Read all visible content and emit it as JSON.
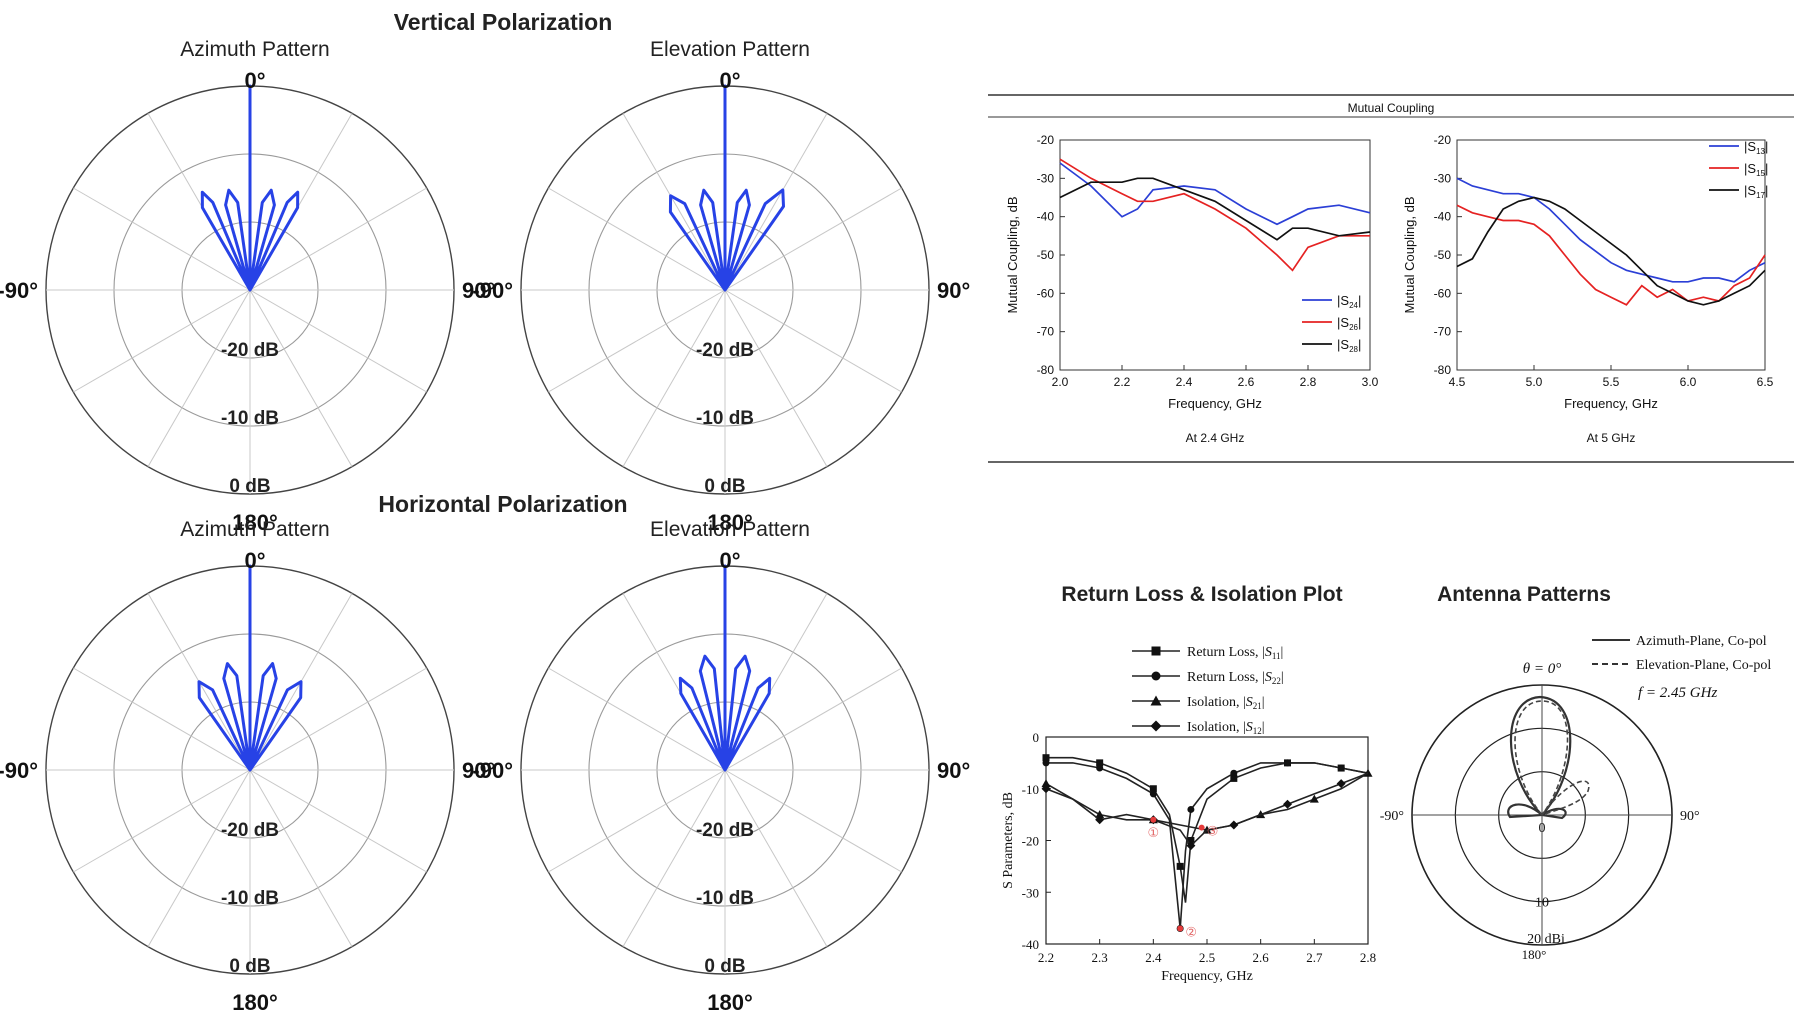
{
  "chart_data": [
    {
      "type": "polar",
      "group_title": "Vertical Polarization",
      "title": "Azimuth Pattern",
      "angle_labels": {
        "top": "0°",
        "bottom": "180°",
        "left": "-90°",
        "right": "90°"
      },
      "ring_labels": [
        "-20 dB",
        "-10 dB",
        "0 dB"
      ],
      "rlim_db": [
        -30,
        0
      ],
      "color": "#2742e6",
      "series": [
        {
          "name": "pattern",
          "angle_deg": [
            -36,
            -30,
            -26,
            -23,
            -20,
            -16,
            -12,
            -8,
            -4,
            0,
            4,
            8,
            12,
            16,
            20,
            23,
            26,
            30,
            36
          ],
          "level_db": [
            -30,
            -16,
            -14,
            -16,
            -30,
            -17,
            -15,
            -17,
            -30,
            0,
            -30,
            -17,
            -15,
            -17,
            -30,
            -16,
            -14,
            -16,
            -30
          ]
        }
      ]
    },
    {
      "type": "polar",
      "title": "Elevation Pattern",
      "angle_labels": {
        "top": "0°",
        "bottom": "180°",
        "left": "-90°",
        "right": "90°"
      },
      "ring_labels": [
        "-20 dB",
        "-10 dB",
        "0 dB"
      ],
      "rlim_db": [
        -30,
        0
      ],
      "color": "#2742e6",
      "series": [
        {
          "name": "pattern",
          "angle_deg": [
            -40,
            -35,
            -30,
            -25,
            -20,
            -16,
            -12,
            -8,
            -4,
            0,
            4,
            8,
            12,
            16,
            20,
            25,
            30,
            35,
            40
          ],
          "level_db": [
            -30,
            -16,
            -14,
            -16,
            -30,
            -17,
            -15,
            -17,
            -30,
            0,
            -30,
            -17,
            -15,
            -17,
            -30,
            -16,
            -13,
            -15,
            -30
          ]
        }
      ]
    },
    {
      "type": "polar",
      "group_title": "Horizontal Polarization",
      "title": "Azimuth Pattern",
      "angle_labels": {
        "top": "0°",
        "bottom": "180°",
        "left": "-90°",
        "right": "90°"
      },
      "ring_labels": [
        "-20 dB",
        "-10 dB",
        "0 dB"
      ],
      "rlim_db": [
        -30,
        0
      ],
      "color": "#2742e6",
      "series": [
        {
          "name": "pattern",
          "angle_deg": [
            -40,
            -35,
            -30,
            -25,
            -20,
            -16,
            -12,
            -8,
            -4,
            0,
            4,
            8,
            12,
            16,
            20,
            25,
            30,
            35,
            40
          ],
          "level_db": [
            -30,
            -17,
            -15,
            -17,
            -30,
            -16,
            -14,
            -16,
            -30,
            0,
            -30,
            -16,
            -14,
            -16,
            -30,
            -17,
            -15,
            -17,
            -30
          ]
        }
      ]
    },
    {
      "type": "polar",
      "title": "Elevation Pattern",
      "angle_labels": {
        "top": "0°",
        "bottom": "180°",
        "left": "-90°",
        "right": "90°"
      },
      "ring_labels": [
        "-20 dB",
        "-10 dB",
        "0 dB"
      ],
      "rlim_db": [
        -30,
        0
      ],
      "color": "#2742e6",
      "series": [
        {
          "name": "pattern",
          "angle_deg": [
            -34,
            -30,
            -26,
            -22,
            -18,
            -14,
            -10,
            -6,
            -3,
            0,
            3,
            6,
            10,
            14,
            18,
            22,
            26,
            30,
            34
          ],
          "level_db": [
            -30,
            -17,
            -15,
            -17,
            -30,
            -15,
            -13,
            -15,
            -30,
            0,
            -30,
            -15,
            -13,
            -15,
            -30,
            -17,
            -15,
            -17,
            -30
          ]
        }
      ]
    },
    {
      "type": "line",
      "panel_title": "Mutual Coupling",
      "xlabel": "Frequency, GHz",
      "ylabel": "Mutual Coupling, dB",
      "caption": "At 2.4 GHz",
      "xlim": [
        2.0,
        3.0
      ],
      "ylim": [
        -80,
        -20
      ],
      "xticks": [
        "2.0",
        "2.2",
        "2.4",
        "2.6",
        "2.8",
        "3.0"
      ],
      "yticks": [
        "-20",
        "-30",
        "-40",
        "-50",
        "-60",
        "-70",
        "-80"
      ],
      "x": [
        2.0,
        2.1,
        2.2,
        2.25,
        2.3,
        2.4,
        2.5,
        2.6,
        2.7,
        2.75,
        2.8,
        2.9,
        3.0
      ],
      "series": [
        {
          "name": "|S24|",
          "sub": "24",
          "color": "#2b3fd6",
          "values": [
            -26,
            -32,
            -40,
            -38,
            -33,
            -32,
            -33,
            -38,
            -42,
            -40,
            -38,
            -37,
            -39
          ]
        },
        {
          "name": "|S26|",
          "sub": "26",
          "color": "#e52222",
          "values": [
            -25,
            -30,
            -34,
            -36,
            -36,
            -34,
            -38,
            -43,
            -50,
            -54,
            -48,
            -45,
            -45
          ]
        },
        {
          "name": "|S28|",
          "sub": "28",
          "color": "#111111",
          "values": [
            -35,
            -31,
            -31,
            -30,
            -30,
            -33,
            -36,
            -41,
            -46,
            -43,
            -43,
            -45,
            -44
          ]
        }
      ]
    },
    {
      "type": "line",
      "xlabel": "Frequency, GHz",
      "ylabel": "Mutual Coupling, dB",
      "caption": "At 5 GHz",
      "xlim": [
        4.5,
        6.5
      ],
      "ylim": [
        -80,
        -20
      ],
      "xticks": [
        "4.5",
        "5.0",
        "5.5",
        "6.0",
        "6.5"
      ],
      "yticks": [
        "-20",
        "-30",
        "-40",
        "-50",
        "-60",
        "-70",
        "-80"
      ],
      "x": [
        4.5,
        4.6,
        4.7,
        4.8,
        4.9,
        5.0,
        5.1,
        5.2,
        5.3,
        5.4,
        5.5,
        5.6,
        5.7,
        5.8,
        5.9,
        6.0,
        6.1,
        6.2,
        6.3,
        6.4,
        6.5
      ],
      "series": [
        {
          "name": "|S13|",
          "sub": "13",
          "color": "#2b3fd6",
          "values": [
            -30,
            -32,
            -33,
            -34,
            -34,
            -35,
            -38,
            -42,
            -46,
            -49,
            -52,
            -54,
            -55,
            -56,
            -57,
            -57,
            -56,
            -56,
            -57,
            -54,
            -52
          ]
        },
        {
          "name": "|S15|",
          "sub": "15",
          "color": "#e52222",
          "values": [
            -37,
            -39,
            -40,
            -41,
            -41,
            -42,
            -45,
            -50,
            -55,
            -59,
            -61,
            -63,
            -58,
            -61,
            -59,
            -62,
            -61,
            -62,
            -58,
            -56,
            -50
          ]
        },
        {
          "name": "|S17|",
          "sub": "17",
          "color": "#111111",
          "values": [
            -53,
            -51,
            -44,
            -38,
            -36,
            -35,
            -36,
            -38,
            -41,
            -44,
            -47,
            -50,
            -54,
            -58,
            -60,
            -62,
            -63,
            -62,
            -60,
            -58,
            -54
          ]
        }
      ]
    },
    {
      "type": "line",
      "title": "Return Loss & Isolation Plot",
      "xlabel": "Frequency, GHz",
      "ylabel": "S Parameters, dB",
      "xlim": [
        2.2,
        2.8
      ],
      "ylim": [
        -40,
        0
      ],
      "xticks": [
        "2.2",
        "2.3",
        "2.4",
        "2.5",
        "2.6",
        "2.7",
        "2.8"
      ],
      "yticks": [
        "0",
        "-10",
        "-20",
        "-30",
        "-40"
      ],
      "series": [
        {
          "name": "Return Loss, |S11|",
          "legend_prefix": "Return Loss, |",
          "sym": "S",
          "sub": "11",
          "marker": "square",
          "x": [
            2.2,
            2.25,
            2.3,
            2.35,
            2.4,
            2.43,
            2.45,
            2.46,
            2.47,
            2.5,
            2.55,
            2.6,
            2.65,
            2.7,
            2.75,
            2.8
          ],
          "values": [
            -4,
            -4,
            -5,
            -7,
            -10,
            -15,
            -25,
            -32,
            -20,
            -12,
            -8,
            -6,
            -5,
            -5,
            -6,
            -7
          ]
        },
        {
          "name": "Return Loss, |S22|",
          "legend_prefix": "Return Loss, |",
          "sym": "S",
          "sub": "22",
          "marker": "circle",
          "x": [
            2.2,
            2.25,
            2.3,
            2.35,
            2.4,
            2.43,
            2.45,
            2.46,
            2.47,
            2.5,
            2.55,
            2.6,
            2.65,
            2.7,
            2.75,
            2.8
          ],
          "values": [
            -5,
            -5,
            -6,
            -8,
            -11,
            -16,
            -37,
            -22,
            -14,
            -10,
            -7,
            -5,
            -5,
            -5,
            -6,
            -7
          ]
        },
        {
          "name": "Isolation, |S21|",
          "legend_prefix": "Isolation, |",
          "sym": "S",
          "sub": "21",
          "marker": "triangle",
          "x": [
            2.2,
            2.25,
            2.3,
            2.35,
            2.4,
            2.45,
            2.5,
            2.55,
            2.6,
            2.65,
            2.7,
            2.75,
            2.8
          ],
          "values": [
            -9,
            -12,
            -15,
            -16,
            -16,
            -17,
            -18,
            -17,
            -15,
            -14,
            -12,
            -10,
            -7
          ]
        },
        {
          "name": "Isolation, |S12|",
          "legend_prefix": "Isolation, |",
          "sym": "S",
          "sub": "12",
          "marker": "diamond",
          "x": [
            2.2,
            2.25,
            2.3,
            2.35,
            2.4,
            2.45,
            2.47,
            2.5,
            2.55,
            2.6,
            2.65,
            2.7,
            2.75,
            2.8
          ],
          "values": [
            -10,
            -12,
            -16,
            -15,
            -16,
            -18,
            -21,
            -18,
            -17,
            -15,
            -13,
            -11,
            -9,
            -7
          ]
        }
      ],
      "annotations": [
        {
          "label": "①",
          "x": 2.4,
          "y": -16
        },
        {
          "label": "②",
          "x": 2.45,
          "y": -37
        },
        {
          "label": "③",
          "x": 2.49,
          "y": -17.5
        }
      ]
    },
    {
      "type": "polar",
      "title": "Antenna Patterns",
      "theta_label": "θ = 0°",
      "angle_labels": {
        "left": "-90°",
        "right": "90°",
        "bottom": "180°"
      },
      "ring_labels": [
        "0",
        "10",
        "20 dBi"
      ],
      "freq_label": "f = 2.45 GHz",
      "series": [
        {
          "name": "Azimuth-Plane, Co-pol",
          "style": "solid"
        },
        {
          "name": "Elevation-Plane, Co-pol",
          "style": "dashed"
        }
      ]
    }
  ]
}
